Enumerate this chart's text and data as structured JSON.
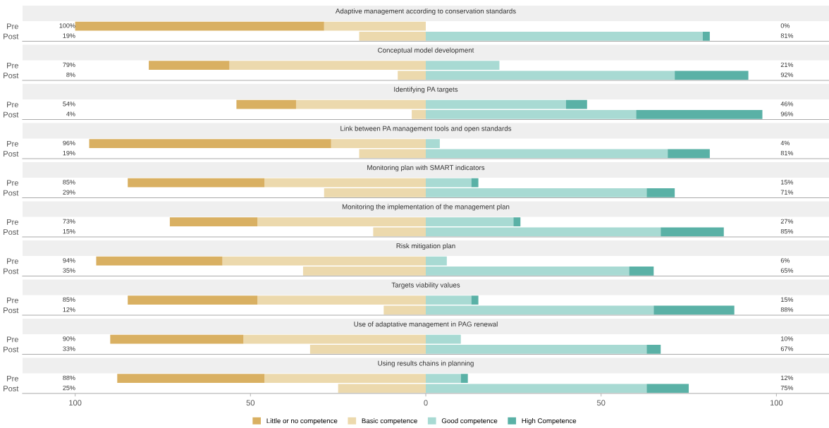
{
  "chart_data": [
    {
      "type": "bar",
      "orientation": "horizontal",
      "stacked": true,
      "title": "Adaptive management according to conservation standards",
      "categories": [
        "Pre",
        "Post"
      ],
      "xlim": [
        -115,
        115
      ],
      "tick_labels": "y",
      "annotations": [
        "100%",
        "19%",
        "0%",
        "81%"
      ],
      "series": [
        {
          "color": "#ecd9ad",
          "values": [
            -29,
            -19
          ]
        },
        {
          "color": "#d9b062",
          "values": [
            -71,
            0
          ]
        },
        {
          "color": "#a8dad3",
          "values": [
            0,
            79
          ]
        },
        {
          "color": "#5ab1a6",
          "values": [
            0,
            2
          ]
        }
      ]
    },
    {
      "type": "bar",
      "orientation": "horizontal",
      "stacked": true,
      "title": "Conceptual model development",
      "categories": [
        "Pre",
        "Post"
      ],
      "xlim": [
        -115,
        115
      ],
      "tick_labels": "y",
      "annotations": [
        "79%",
        "8%",
        "21%",
        "92%"
      ],
      "series": [
        {
          "color": "#ecd9ad",
          "values": [
            -56,
            -8
          ]
        },
        {
          "color": "#d9b062",
          "values": [
            -23,
            0
          ]
        },
        {
          "color": "#a8dad3",
          "values": [
            21,
            71
          ]
        },
        {
          "color": "#5ab1a6",
          "values": [
            0,
            21
          ]
        }
      ]
    },
    {
      "type": "bar",
      "orientation": "horizontal",
      "stacked": true,
      "title": "Identifying PA targets",
      "categories": [
        "Pre",
        "Post"
      ],
      "xlim": [
        -115,
        115
      ],
      "tick_labels": "y",
      "annotations": [
        "54%",
        "4%",
        "46%",
        "96%"
      ],
      "series": [
        {
          "color": "#ecd9ad",
          "values": [
            -37,
            -4
          ]
        },
        {
          "color": "#d9b062",
          "values": [
            -17,
            0
          ]
        },
        {
          "color": "#a8dad3",
          "values": [
            40,
            60
          ]
        },
        {
          "color": "#5ab1a6",
          "values": [
            6,
            36
          ]
        }
      ]
    },
    {
      "type": "bar",
      "orientation": "horizontal",
      "stacked": true,
      "title": "Link between PA management tools and open standards",
      "categories": [
        "Pre",
        "Post"
      ],
      "xlim": [
        -115,
        115
      ],
      "tick_labels": "y",
      "annotations": [
        "96%",
        "19%",
        "4%",
        "81%"
      ],
      "series": [
        {
          "color": "#ecd9ad",
          "values": [
            -27,
            -19
          ]
        },
        {
          "color": "#d9b062",
          "values": [
            -69,
            0
          ]
        },
        {
          "color": "#a8dad3",
          "values": [
            4,
            69
          ]
        },
        {
          "color": "#5ab1a6",
          "values": [
            0,
            12
          ]
        }
      ]
    },
    {
      "type": "bar",
      "orientation": "horizontal",
      "stacked": true,
      "title": "Monitoring plan with SMART indicators",
      "categories": [
        "Pre",
        "Post"
      ],
      "xlim": [
        -115,
        115
      ],
      "tick_labels": "y",
      "annotations": [
        "85%",
        "29%",
        "15%",
        "71%"
      ],
      "series": [
        {
          "color": "#ecd9ad",
          "values": [
            -46,
            -29
          ]
        },
        {
          "color": "#d9b062",
          "values": [
            -39,
            0
          ]
        },
        {
          "color": "#a8dad3",
          "values": [
            13,
            63
          ]
        },
        {
          "color": "#5ab1a6",
          "values": [
            2,
            8
          ]
        }
      ]
    },
    {
      "type": "bar",
      "orientation": "horizontal",
      "stacked": true,
      "title": "Monitoring the implementation of the management plan",
      "categories": [
        "Pre",
        "Post"
      ],
      "xlim": [
        -115,
        115
      ],
      "tick_labels": "y",
      "annotations": [
        "73%",
        "15%",
        "27%",
        "85%"
      ],
      "series": [
        {
          "color": "#ecd9ad",
          "values": [
            -48,
            -15
          ]
        },
        {
          "color": "#d9b062",
          "values": [
            -25,
            0
          ]
        },
        {
          "color": "#a8dad3",
          "values": [
            25,
            67
          ]
        },
        {
          "color": "#5ab1a6",
          "values": [
            2,
            18
          ]
        }
      ]
    },
    {
      "type": "bar",
      "orientation": "horizontal",
      "stacked": true,
      "title": "Risk mitigation plan",
      "categories": [
        "Pre",
        "Post"
      ],
      "xlim": [
        -115,
        115
      ],
      "tick_labels": "y",
      "annotations": [
        "94%",
        "35%",
        "6%",
        "65%"
      ],
      "series": [
        {
          "color": "#ecd9ad",
          "values": [
            -58,
            -35
          ]
        },
        {
          "color": "#d9b062",
          "values": [
            -36,
            0
          ]
        },
        {
          "color": "#a8dad3",
          "values": [
            6,
            58
          ]
        },
        {
          "color": "#5ab1a6",
          "values": [
            0,
            7
          ]
        }
      ]
    },
    {
      "type": "bar",
      "orientation": "horizontal",
      "stacked": true,
      "title": "Targets viability values",
      "categories": [
        "Pre",
        "Post"
      ],
      "xlim": [
        -115,
        115
      ],
      "tick_labels": "y",
      "annotations": [
        "85%",
        "12%",
        "15%",
        "88%"
      ],
      "series": [
        {
          "color": "#ecd9ad",
          "values": [
            -48,
            -12
          ]
        },
        {
          "color": "#d9b062",
          "values": [
            -37,
            0
          ]
        },
        {
          "color": "#a8dad3",
          "values": [
            13,
            65
          ]
        },
        {
          "color": "#5ab1a6",
          "values": [
            2,
            23
          ]
        }
      ]
    },
    {
      "type": "bar",
      "orientation": "horizontal",
      "stacked": true,
      "title": "Use of adaptative management in PAG renewal",
      "categories": [
        "Pre",
        "Post"
      ],
      "xlim": [
        -115,
        115
      ],
      "tick_labels": "y",
      "annotations": [
        "90%",
        "33%",
        "10%",
        "67%"
      ],
      "series": [
        {
          "color": "#ecd9ad",
          "values": [
            -52,
            -33
          ]
        },
        {
          "color": "#d9b062",
          "values": [
            -38,
            0
          ]
        },
        {
          "color": "#a8dad3",
          "values": [
            10,
            63
          ]
        },
        {
          "color": "#5ab1a6",
          "values": [
            0,
            4
          ]
        }
      ]
    },
    {
      "type": "bar",
      "orientation": "horizontal",
      "stacked": true,
      "title": "Using results chains in planning",
      "categories": [
        "Pre",
        "Post"
      ],
      "xlim": [
        -115,
        115
      ],
      "xticks": [
        {
          "value": -100,
          "label": "100"
        },
        {
          "value": -50,
          "label": "50"
        },
        0,
        50,
        100
      ],
      "legend": "bottom",
      "annotations": [
        "88%",
        "25%",
        "12%",
        "75%"
      ],
      "series": [
        {
          "name": "Basic competence",
          "color": "#ecd9ad",
          "values": [
            -46,
            -25
          ]
        },
        {
          "name": "Little or no competence",
          "color": "#d9b062",
          "values": [
            -42,
            0
          ]
        },
        {
          "name": "Good competence",
          "color": "#a8dad3",
          "values": [
            10,
            63
          ]
        },
        {
          "name": "High Competence",
          "color": "#5ab1a6",
          "values": [
            2,
            12
          ]
        }
      ]
    }
  ]
}
